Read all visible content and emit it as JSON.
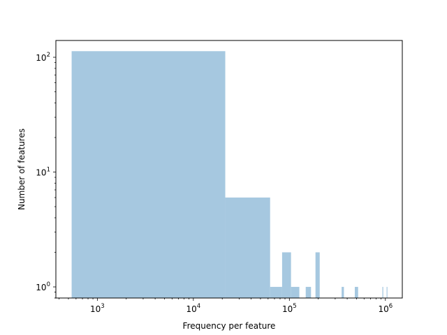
{
  "chart_data": {
    "type": "bar",
    "title": "",
    "xlabel": "Frequency per feature",
    "ylabel": "Number of features",
    "xscale": "log",
    "yscale": "log",
    "xlim": [
      370,
      1500000
    ],
    "ylim": [
      0.8,
      140
    ],
    "grid": false,
    "bar_color": "#a6c8e0",
    "x_ticks": [
      {
        "base": "10",
        "exp": "3",
        "value": 1000
      },
      {
        "base": "10",
        "exp": "4",
        "value": 10000
      },
      {
        "base": "10",
        "exp": "5",
        "value": 100000
      },
      {
        "base": "10",
        "exp": "6",
        "value": 1000000
      }
    ],
    "y_ticks": [
      {
        "base": "10",
        "exp": "0",
        "value": 1
      },
      {
        "base": "10",
        "exp": "1",
        "value": 10
      },
      {
        "base": "10",
        "exp": "2",
        "value": 100
      }
    ],
    "bins": [
      {
        "x0": 540,
        "x1": 21500,
        "count": 113
      },
      {
        "x0": 21500,
        "x1": 63000,
        "count": 6
      },
      {
        "x0": 63000,
        "x1": 84000,
        "count": 1
      },
      {
        "x0": 84000,
        "x1": 104000,
        "count": 2
      },
      {
        "x0": 104000,
        "x1": 127000,
        "count": 1
      },
      {
        "x0": 148000,
        "x1": 168000,
        "count": 1
      },
      {
        "x0": 187000,
        "x1": 207000,
        "count": 2
      },
      {
        "x0": 350000,
        "x1": 370000,
        "count": 1
      },
      {
        "x0": 480000,
        "x1": 520000,
        "count": 1
      },
      {
        "x0": 930000,
        "x1": 950000,
        "count": 1
      },
      {
        "x0": 1030000,
        "x1": 1050000,
        "count": 1
      }
    ]
  }
}
